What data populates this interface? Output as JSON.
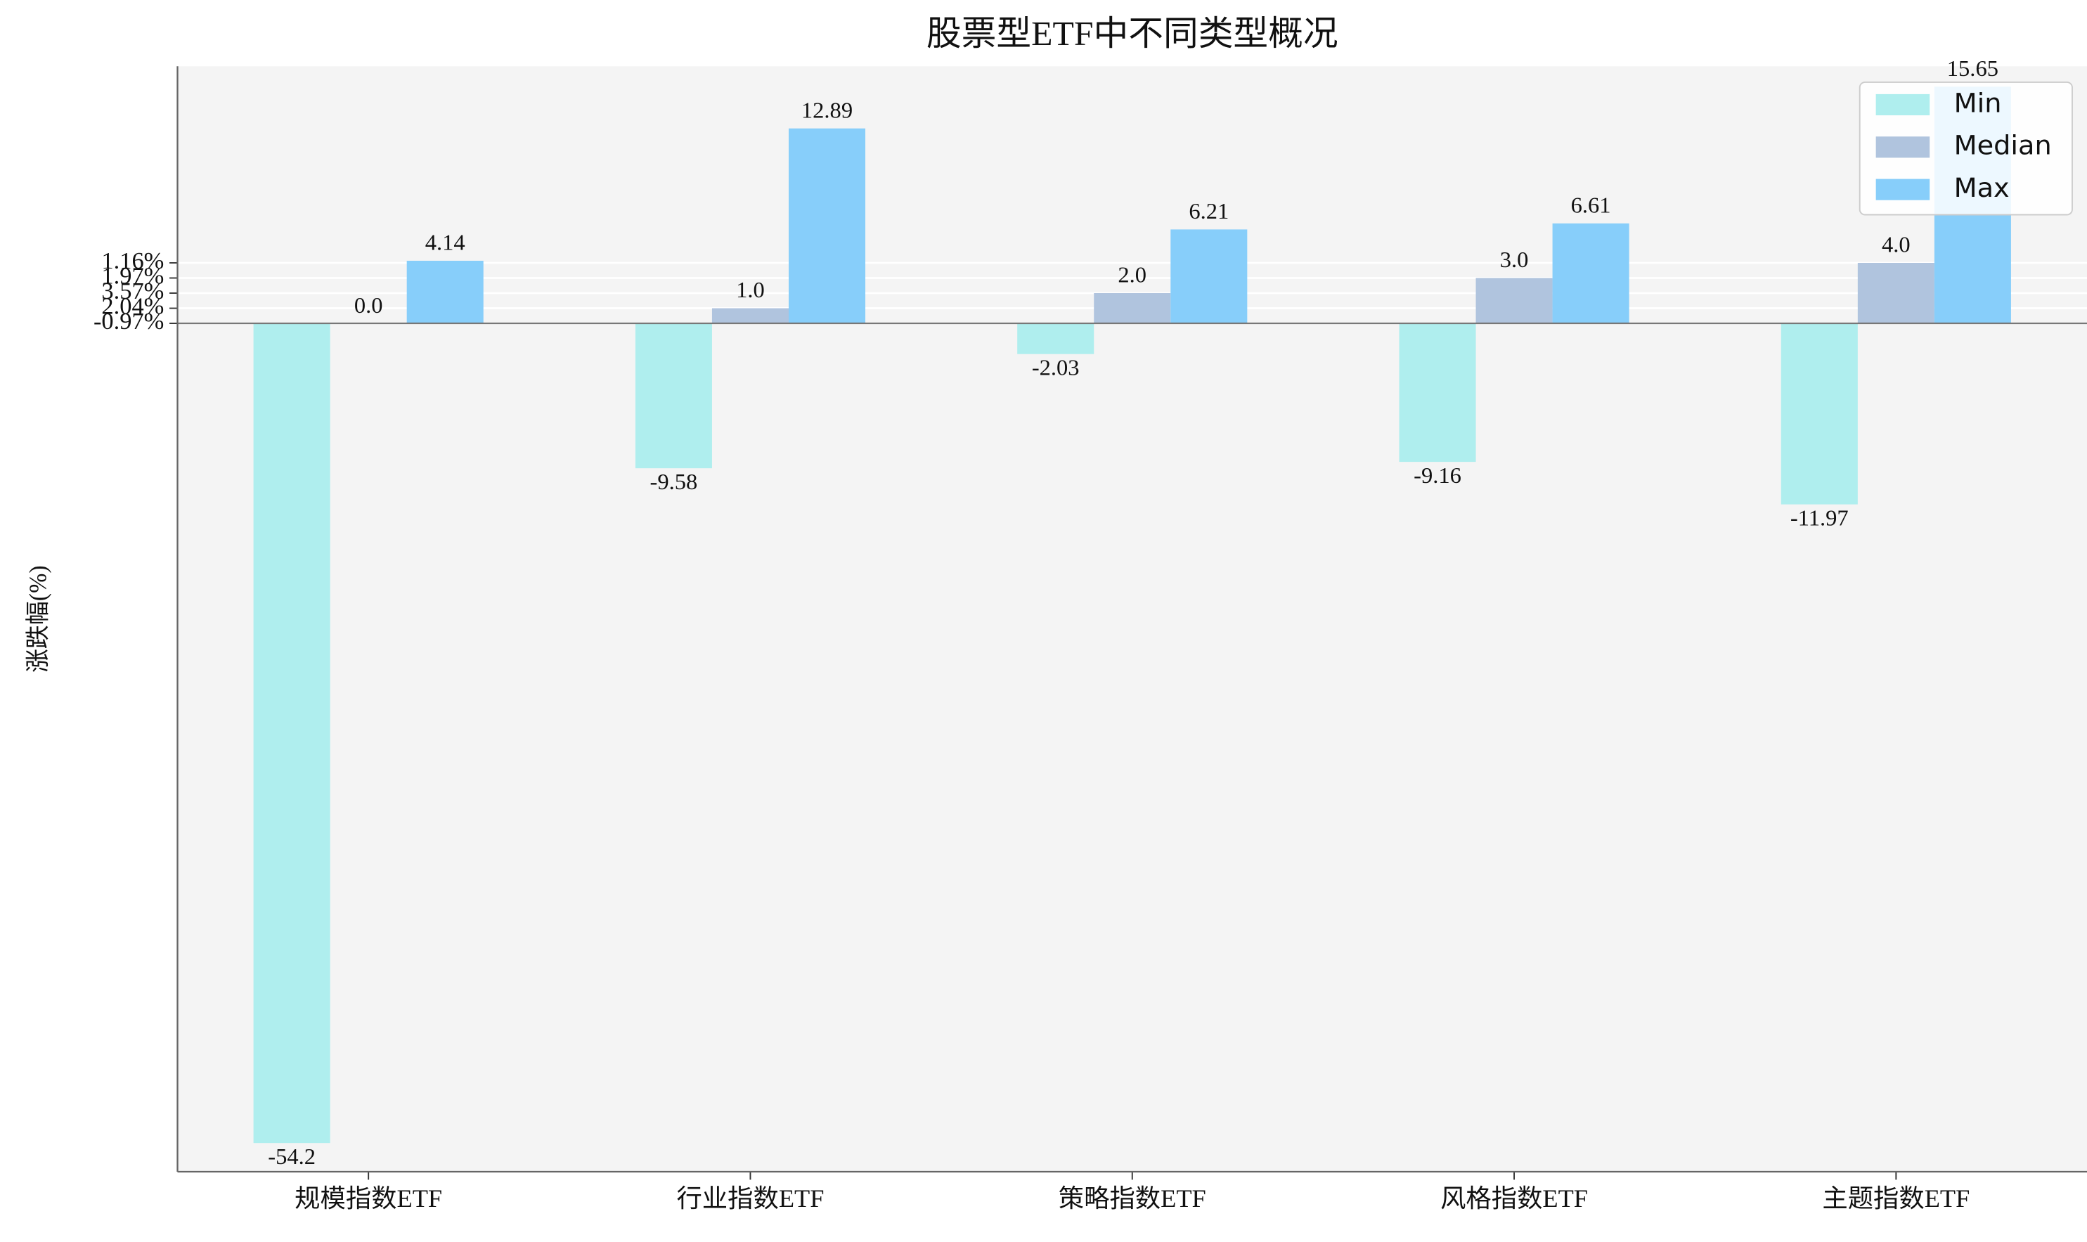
{
  "chart_data": {
    "type": "bar",
    "title": "股票型ETF中不同类型概况",
    "ylabel": "涨跌幅(%)",
    "categories": [
      "规模指数ETF",
      "行业指数ETF",
      "策略指数ETF",
      "风格指数ETF",
      "主题指数ETF"
    ],
    "series": [
      {
        "name": "Min",
        "color": "#afeeee",
        "values": [
          -54.2,
          -9.58,
          -2.03,
          -9.16,
          -11.97
        ]
      },
      {
        "name": "Median",
        "color": "#b0c4de",
        "values": [
          0,
          1,
          2,
          3,
          4
        ],
        "value_labels": [
          "0.0",
          "1.0",
          "2.0",
          "3.0",
          "4.0"
        ]
      },
      {
        "name": "Max",
        "color": "#87cefa",
        "values": [
          4.14,
          12.89,
          6.21,
          6.61,
          15.65
        ]
      }
    ],
    "ylim": [
      -56.1,
      17.0
    ],
    "yticks": [
      {
        "value": 0,
        "label": "-0.97%"
      },
      {
        "value": 1,
        "label": "2.04%"
      },
      {
        "value": 2,
        "label": "3.57%"
      },
      {
        "value": 3,
        "label": "1.97%"
      },
      {
        "value": 4,
        "label": "1.16%"
      }
    ],
    "grid": true,
    "legend": "upper right"
  }
}
